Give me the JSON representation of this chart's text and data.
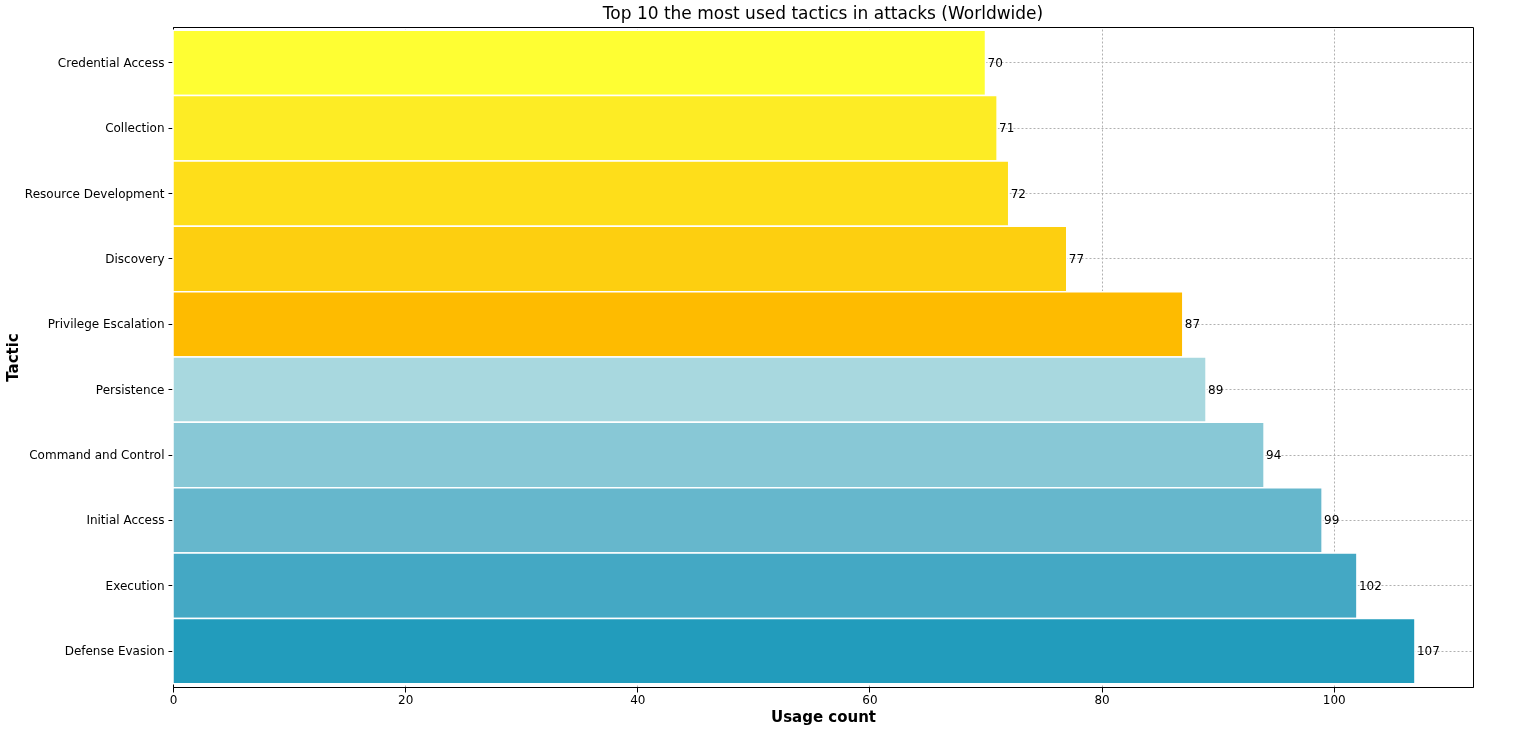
{
  "chart_data": {
    "type": "bar",
    "orientation": "horizontal",
    "title": "Top 10 the most used tactics in attacks (Worldwide)",
    "xlabel": "Usage count",
    "ylabel": "Tactic",
    "categories": [
      "Credential Access",
      "Collection",
      "Resource Development",
      "Discovery",
      "Privilege Escalation",
      "Persistence",
      "Command and Control",
      "Initial Access",
      "Execution",
      "Defense Evasion"
    ],
    "values": [
      70,
      71,
      72,
      77,
      87,
      89,
      94,
      99,
      102,
      107
    ],
    "colors": [
      "#fefe33",
      "#fdec25",
      "#fede1a",
      "#fdcf10",
      "#febb00",
      "#a8d8df",
      "#88c8d6",
      "#66b7cc",
      "#44a8c4",
      "#229cbc"
    ],
    "xlim": [
      0,
      112
    ],
    "xticks": [
      0,
      20,
      40,
      60,
      80,
      100
    ],
    "grid": true,
    "data_labels": true
  }
}
